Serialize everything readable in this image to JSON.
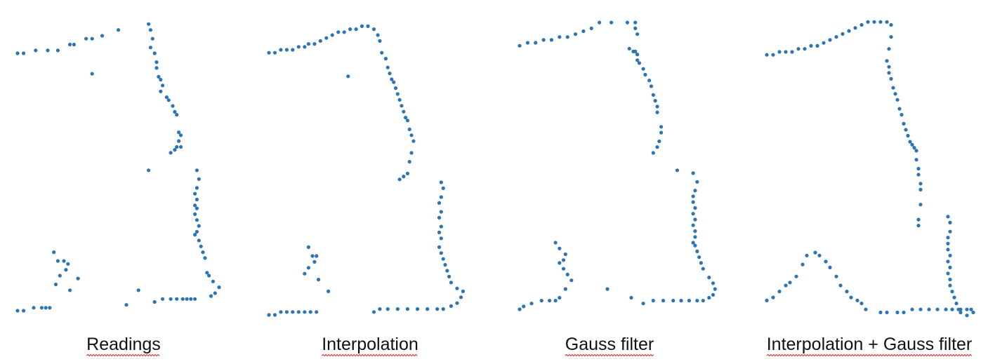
{
  "panel_labels": [
    "Readings",
    "Interpolation",
    "Gauss filter",
    "Interpolation + Gauss filter"
  ],
  "colors": {
    "point": "#2c74b4",
    "label": "#111111",
    "spellcheck_underline": "#e03b3b"
  },
  "chart_data": [
    {
      "type": "scatter",
      "title": "Readings",
      "xlabel": "",
      "ylabel": "",
      "xlim": [
        0,
        100
      ],
      "ylim": [
        0,
        100
      ],
      "axes_visible": false,
      "grid": false,
      "point_color": "#2c74b4",
      "series": [
        {
          "x": [
            0,
            3,
            9,
            15,
            20,
            26,
            28,
            34,
            37,
            42,
            50,
            37,
            65,
            66,
            67,
            66,
            68,
            69,
            69,
            70,
            71,
            72,
            71,
            74,
            75,
            77,
            78,
            79,
            80,
            81,
            80,
            81,
            79,
            78,
            76,
            65,
            89,
            90,
            89,
            88,
            89,
            88,
            89,
            88,
            89,
            90,
            89,
            88,
            90,
            91,
            92,
            93,
            94,
            95,
            97,
            100,
            98,
            96,
            88,
            86,
            84,
            82,
            79,
            76,
            72,
            68,
            60,
            54,
            18,
            20,
            23,
            25,
            24,
            21,
            19,
            30,
            26,
            16,
            14,
            12,
            8,
            3,
            0
          ],
          "y": [
            88,
            88,
            89,
            89,
            89,
            91,
            91,
            93,
            93,
            94,
            96,
            81,
            98,
            96,
            93,
            90,
            88,
            85,
            83,
            80,
            79,
            77,
            75,
            73,
            72,
            70,
            68,
            67,
            61,
            60,
            58,
            56,
            56,
            55,
            54,
            48,
            48,
            45,
            42,
            40,
            38,
            36,
            35,
            33,
            31,
            29,
            27,
            26,
            24,
            22,
            20,
            18,
            13,
            12,
            10,
            8,
            6,
            5,
            4,
            4,
            4,
            4,
            4,
            4,
            4,
            3,
            7,
            2,
            20,
            17,
            17,
            16,
            14,
            12,
            9,
            11,
            7,
            1,
            1,
            1,
            1,
            0,
            0
          ]
        }
      ]
    },
    {
      "type": "scatter",
      "title": "Interpolation",
      "xlabel": "",
      "ylabel": "",
      "xlim": [
        0,
        100
      ],
      "ylim": [
        0,
        100
      ],
      "axes_visible": false,
      "grid": false,
      "point_color": "#2c74b4",
      "series": [
        {
          "x": [
            0,
            3,
            6,
            9,
            12,
            15,
            18,
            20,
            23,
            26,
            29,
            32,
            35,
            38,
            41,
            44,
            47,
            50,
            53,
            55,
            56,
            57,
            59,
            60,
            61,
            62,
            63,
            64,
            65,
            66,
            67,
            68,
            69,
            70,
            71,
            72,
            73,
            72,
            71,
            70,
            68,
            66,
            40,
            87,
            88,
            87,
            86,
            87,
            86,
            87,
            86,
            87,
            86,
            87,
            88,
            89,
            90,
            91,
            92,
            95,
            98,
            97,
            95,
            92,
            88,
            85,
            80,
            75,
            70,
            65,
            60,
            56,
            53,
            20,
            22,
            24,
            23,
            20,
            18,
            25,
            30,
            0,
            3,
            6,
            9,
            12,
            15,
            18,
            21,
            24
          ],
          "y": [
            89,
            89,
            90,
            90,
            90,
            91,
            91,
            92,
            92,
            93,
            94,
            95,
            96,
            96,
            97,
            97,
            98,
            98,
            97,
            95,
            93,
            89,
            87,
            84,
            82,
            80,
            79,
            77,
            75,
            73,
            71,
            69,
            67,
            66,
            63,
            61,
            59,
            55,
            52,
            48,
            47,
            46,
            81,
            45,
            43,
            40,
            38,
            35,
            33,
            30,
            28,
            26,
            23,
            21,
            19,
            17,
            15,
            13,
            11,
            9,
            8,
            6,
            4,
            3,
            2,
            2,
            2,
            2,
            2,
            2,
            2,
            2,
            1,
            23,
            20,
            20,
            18,
            16,
            14,
            12,
            8,
            0,
            0,
            1,
            1,
            1,
            1,
            1,
            1,
            1
          ]
        }
      ]
    },
    {
      "type": "scatter",
      "title": "Gauss filter",
      "xlabel": "",
      "ylabel": "",
      "xlim": [
        0,
        100
      ],
      "ylim": [
        0,
        100
      ],
      "axes_visible": false,
      "grid": false,
      "point_color": "#2c74b4",
      "series": [
        {
          "x": [
            0,
            4,
            8,
            12,
            16,
            20,
            24,
            28,
            32,
            36,
            40,
            46,
            54,
            58,
            58,
            59,
            55,
            57,
            58,
            59,
            59,
            60,
            62,
            63,
            65,
            66,
            67,
            68,
            69,
            69,
            71,
            71,
            70,
            69,
            67,
            79,
            87,
            89,
            88,
            87,
            87,
            88,
            87,
            88,
            87,
            88,
            88,
            87,
            88,
            89,
            90,
            91,
            92,
            95,
            97,
            98,
            97,
            95,
            92,
            89,
            85,
            81,
            77,
            72,
            67,
            62,
            56,
            44,
            18,
            20,
            23,
            22,
            20,
            22,
            24,
            26,
            23,
            20,
            18,
            15,
            11,
            6,
            2,
            0
          ],
          "y": [
            91,
            92,
            92,
            93,
            93,
            94,
            94,
            95,
            96,
            97,
            99,
            99,
            99,
            99,
            97,
            95,
            90,
            89,
            89,
            88,
            86,
            85,
            83,
            81,
            79,
            77,
            74,
            72,
            70,
            68,
            63,
            61,
            58,
            56,
            54,
            48,
            47,
            44,
            41,
            39,
            37,
            35,
            33,
            31,
            29,
            27,
            25,
            23,
            22,
            20,
            18,
            16,
            14,
            11,
            9,
            7,
            5,
            4,
            3,
            3,
            3,
            3,
            3,
            3,
            3,
            2,
            4,
            7,
            23,
            21,
            19,
            17,
            16,
            14,
            12,
            10,
            7,
            4,
            3,
            3,
            3,
            2,
            1,
            0
          ]
        }
      ]
    },
    {
      "type": "scatter",
      "title": "Interpolation + Gauss filter",
      "xlabel": "",
      "ylabel": "",
      "xlim": [
        0,
        100
      ],
      "ylim": [
        0,
        100
      ],
      "axes_visible": false,
      "grid": false,
      "point_color": "#2c74b4",
      "series": [
        {
          "x": [
            0,
            3,
            6,
            9,
            12,
            15,
            18,
            21,
            24,
            27,
            30,
            33,
            36,
            39,
            42,
            45,
            48,
            51,
            54,
            57,
            59,
            59,
            58,
            57,
            58,
            58,
            59,
            60,
            61,
            62,
            63,
            64,
            65,
            66,
            67,
            68,
            69,
            70,
            71,
            71,
            72,
            72,
            73,
            73,
            73,
            72,
            72,
            86,
            87,
            87,
            86,
            86,
            86,
            87,
            86,
            87,
            86,
            87,
            87,
            88,
            89,
            90,
            91,
            92,
            95,
            98,
            97,
            95,
            92,
            88,
            85,
            81,
            77,
            73,
            69,
            65,
            62,
            57,
            54,
            47,
            45,
            43,
            40,
            38,
            35,
            33,
            30,
            28,
            25,
            23,
            19,
            17,
            14,
            11,
            9,
            6,
            3,
            0
          ],
          "y": [
            88,
            88,
            89,
            89,
            89,
            90,
            90,
            91,
            91,
            92,
            93,
            94,
            95,
            96,
            97,
            98,
            99,
            99,
            99,
            99,
            98,
            94,
            90,
            86,
            84,
            82,
            80,
            77,
            75,
            73,
            70,
            68,
            65,
            63,
            61,
            59,
            58,
            57,
            56,
            53,
            50,
            48,
            45,
            43,
            38,
            33,
            31,
            34,
            32,
            29,
            27,
            25,
            23,
            21,
            19,
            17,
            15,
            13,
            11,
            9,
            7,
            5,
            3,
            2,
            1,
            2,
            3,
            3,
            3,
            3,
            3,
            3,
            3,
            3,
            3,
            2,
            2,
            2,
            2,
            3,
            5,
            6,
            7,
            9,
            11,
            14,
            17,
            19,
            21,
            22,
            21,
            18,
            14,
            12,
            11,
            9,
            7,
            6
          ]
        }
      ]
    }
  ]
}
